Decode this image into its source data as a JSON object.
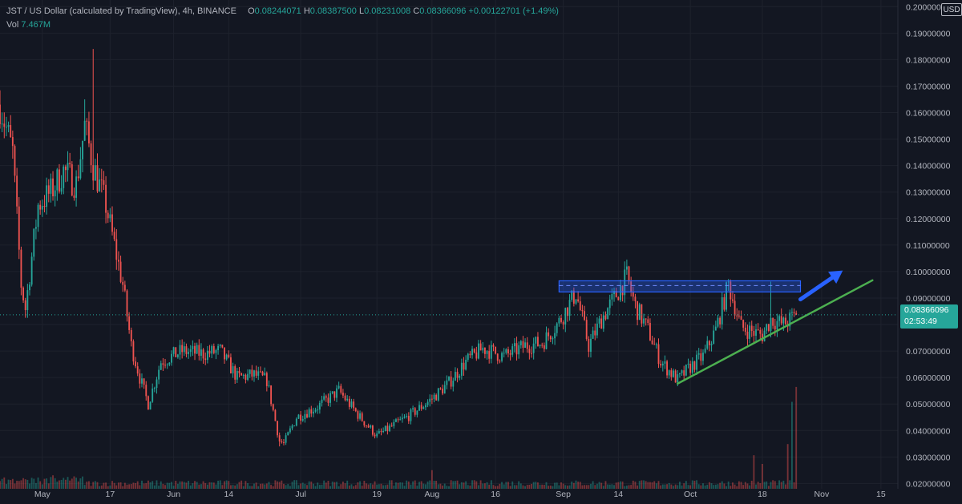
{
  "header": {
    "symbol": "JST / US Dollar (calculated by TradingView), 4h, BINANCE",
    "open_label": "O",
    "open": "0.08244071",
    "high_label": "H",
    "high": "0.08387500",
    "low_label": "L",
    "low": "0.08231008",
    "close_label": "C",
    "close": "0.08366096",
    "change": "+0.00122701 (+1.49%)",
    "vol_label": "Vol",
    "vol": "7.467M"
  },
  "currency": "USD",
  "last_price": {
    "price": "0.08366096",
    "countdown": "02:53:49"
  },
  "colors": {
    "background": "#131722",
    "grid": "#1e222d",
    "up": "#26a69a",
    "down": "#ef5350",
    "axis_text": "#b2b5be",
    "zone": "#2962ff",
    "trendline": "#4caf50",
    "arrow": "#2962ff"
  },
  "chart_data": {
    "type": "candlestick",
    "ylim": [
      0.018,
      0.2025
    ],
    "yticks": [
      "0.20000000",
      "0.19000000",
      "0.18000000",
      "0.17000000",
      "0.16000000",
      "0.15000000",
      "0.14000000",
      "0.13000000",
      "0.12000000",
      "0.11000000",
      "0.10000000",
      "0.09000000",
      "0.08000000",
      "0.07000000",
      "0.06000000",
      "0.05000000",
      "0.04000000",
      "0.03000000",
      "0.02000000"
    ],
    "xticks": [
      {
        "label": "May",
        "date": "2021-05-01"
      },
      {
        "label": "17",
        "date": "2021-05-17"
      },
      {
        "label": "Jun",
        "date": "2021-06-01"
      },
      {
        "label": "14",
        "date": "2021-06-14"
      },
      {
        "label": "Jul",
        "date": "2021-07-01"
      },
      {
        "label": "19",
        "date": "2021-07-19"
      },
      {
        "label": "Aug",
        "date": "2021-08-01"
      },
      {
        "label": "16",
        "date": "2021-08-16"
      },
      {
        "label": "Sep",
        "date": "2021-09-01"
      },
      {
        "label": "14",
        "date": "2021-09-14"
      },
      {
        "label": "Oct",
        "date": "2021-10-01"
      },
      {
        "label": "18",
        "date": "2021-10-18"
      },
      {
        "label": "Nov",
        "date": "2021-11-01"
      },
      {
        "label": "15",
        "date": "2021-11-15"
      }
    ],
    "xlim": [
      "2021-04-21",
      "2021-11-19"
    ],
    "price_path": [
      [
        "2021-04-21",
        0.163
      ],
      [
        "2021-04-24",
        0.145
      ],
      [
        "2021-04-26",
        0.095
      ],
      [
        "2021-04-27",
        0.086
      ],
      [
        "2021-04-30",
        0.125
      ],
      [
        "2021-05-03",
        0.13
      ],
      [
        "2021-05-06",
        0.138
      ],
      [
        "2021-05-09",
        0.133
      ],
      [
        "2021-05-11",
        0.155
      ],
      [
        "2021-05-13",
        0.14
      ],
      [
        "2021-05-16",
        0.125
      ],
      [
        "2021-05-18",
        0.11
      ],
      [
        "2021-05-20",
        0.095
      ],
      [
        "2021-05-22",
        0.072
      ],
      [
        "2021-05-24",
        0.06
      ],
      [
        "2021-05-26",
        0.05
      ],
      [
        "2021-05-29",
        0.066
      ],
      [
        "2021-06-03",
        0.07
      ],
      [
        "2021-06-08",
        0.069
      ],
      [
        "2021-06-12",
        0.07
      ],
      [
        "2021-06-16",
        0.06
      ],
      [
        "2021-06-20",
        0.061
      ],
      [
        "2021-06-23",
        0.059
      ],
      [
        "2021-06-26",
        0.036
      ],
      [
        "2021-06-27",
        0.035
      ],
      [
        "2021-06-30",
        0.045
      ],
      [
        "2021-07-05",
        0.049
      ],
      [
        "2021-07-10",
        0.055
      ],
      [
        "2021-07-15",
        0.045
      ],
      [
        "2021-07-19",
        0.038
      ],
      [
        "2021-07-23",
        0.042
      ],
      [
        "2021-07-27",
        0.046
      ],
      [
        "2021-08-01",
        0.052
      ],
      [
        "2021-08-05",
        0.058
      ],
      [
        "2021-08-09",
        0.066
      ],
      [
        "2021-08-13",
        0.071
      ],
      [
        "2021-08-18",
        0.068
      ],
      [
        "2021-08-23",
        0.072
      ],
      [
        "2021-08-27",
        0.073
      ],
      [
        "2021-08-31",
        0.081
      ],
      [
        "2021-09-04",
        0.092
      ],
      [
        "2021-09-07",
        0.072
      ],
      [
        "2021-09-10",
        0.082
      ],
      [
        "2021-09-13",
        0.09
      ],
      [
        "2021-09-16",
        0.098
      ],
      [
        "2021-09-18",
        0.087
      ],
      [
        "2021-09-21",
        0.078
      ],
      [
        "2021-09-24",
        0.066
      ],
      [
        "2021-09-28",
        0.059
      ],
      [
        "2021-10-01",
        0.064
      ],
      [
        "2021-10-04",
        0.068
      ],
      [
        "2021-10-07",
        0.078
      ],
      [
        "2021-10-10",
        0.095
      ],
      [
        "2021-10-13",
        0.079
      ],
      [
        "2021-10-16",
        0.077
      ],
      [
        "2021-10-18",
        0.076
      ],
      [
        "2021-10-20",
        0.082
      ],
      [
        "2021-10-23",
        0.08
      ],
      [
        "2021-10-26",
        0.0837
      ]
    ],
    "spikes": [
      {
        "date": "2021-05-13",
        "high": 0.184
      },
      {
        "date": "2021-05-11",
        "high": 0.165
      },
      {
        "date": "2021-05-26",
        "low": 0.049
      },
      {
        "date": "2021-06-26",
        "low": 0.034
      },
      {
        "date": "2021-09-16",
        "high": 0.1012
      },
      {
        "date": "2021-10-10",
        "high": 0.0965
      },
      {
        "date": "2021-10-20",
        "high": 0.0962
      },
      {
        "date": "2021-09-07",
        "low": 0.068
      }
    ],
    "volume_spikes": [
      {
        "date": "2021-10-25",
        "share": 0.7
      },
      {
        "date": "2021-10-26",
        "share": 0.82
      },
      {
        "date": "2021-10-24",
        "share": 0.36
      },
      {
        "date": "2021-10-16",
        "share": 0.27
      },
      {
        "date": "2021-10-18",
        "share": 0.2
      },
      {
        "date": "2021-08-01",
        "share": 0.15
      }
    ],
    "resistance_zone": {
      "from": "2021-08-31",
      "to": "2021-10-27",
      "low": 0.0923,
      "high": 0.0965,
      "mid": 0.0947
    },
    "trendline": {
      "from": [
        "2021-09-28",
        0.0577
      ],
      "to": [
        "2021-11-13",
        0.0967
      ]
    },
    "arrow": {
      "from": [
        "2021-10-27",
        0.0895
      ],
      "to": [
        "2021-11-06",
        0.1004
      ]
    },
    "last_price": 0.08366096
  }
}
